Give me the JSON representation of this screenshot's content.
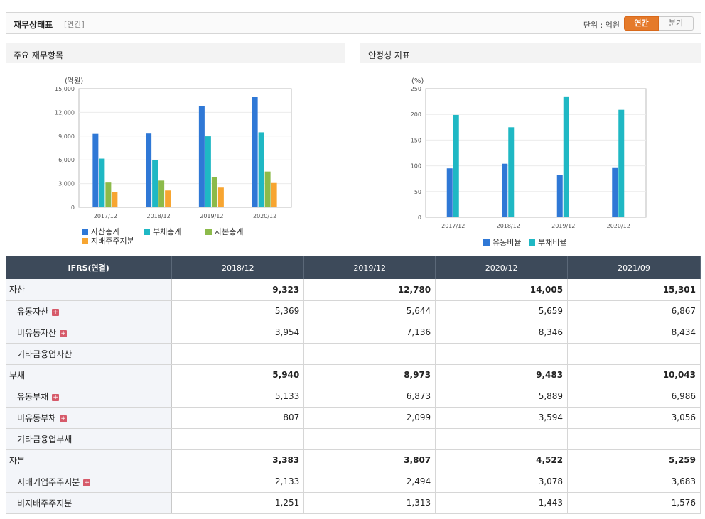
{
  "header": {
    "title": "재무상태표",
    "subtitle": "[연간]",
    "unit": "단위 : 억원",
    "toggle_annual": "연간",
    "toggle_quarter": "분기"
  },
  "left_panel": {
    "title": "주요 재무항목"
  },
  "right_panel": {
    "title": "안정성 지표"
  },
  "chart_data": [
    {
      "type": "bar",
      "title": "주요 재무항목",
      "ylabel": "(억원)",
      "categories": [
        "2017/12",
        "2018/12",
        "2019/12",
        "2020/12"
      ],
      "ylim": [
        0,
        15000
      ],
      "yticks": [
        "0",
        "3,000",
        "6,000",
        "9,000",
        "12,000",
        "15,000"
      ],
      "ytick_values": [
        0,
        3000,
        6000,
        9000,
        12000,
        15000
      ],
      "series": [
        {
          "name": "자산총계",
          "color": "#2f78d6",
          "values": [
            9280,
            9323,
            12780,
            14005
          ]
        },
        {
          "name": "부채총계",
          "color": "#1fb8c4",
          "values": [
            6150,
            5940,
            8973,
            9483
          ]
        },
        {
          "name": "자본총계",
          "color": "#8cba4a",
          "values": [
            3130,
            3383,
            3807,
            4522
          ]
        },
        {
          "name": "지배주주지분",
          "color": "#f7a531",
          "values": [
            1900,
            2133,
            2494,
            3078
          ]
        }
      ]
    },
    {
      "type": "bar",
      "title": "안정성 지표",
      "ylabel": "(%)",
      "categories": [
        "2017/12",
        "2018/12",
        "2019/12",
        "2020/12"
      ],
      "ylim": [
        0,
        250
      ],
      "yticks": [
        "0",
        "50",
        "100",
        "150",
        "200",
        "250"
      ],
      "ytick_values": [
        0,
        50,
        100,
        150,
        200,
        250
      ],
      "series": [
        {
          "name": "유동비율",
          "color": "#2f78d6",
          "values": [
            95,
            104,
            82,
            97
          ]
        },
        {
          "name": "부채비율",
          "color": "#1fb8c4",
          "values": [
            199,
            175,
            235,
            209
          ]
        }
      ]
    }
  ],
  "table": {
    "header": [
      "IFRS(연결)",
      "2018/12",
      "2019/12",
      "2020/12",
      "2021/09"
    ],
    "rows": [
      {
        "label": "자산",
        "main": true,
        "plus": false,
        "values": [
          "9,323",
          "12,780",
          "14,005",
          "15,301"
        ]
      },
      {
        "label": "유동자산",
        "main": false,
        "plus": true,
        "values": [
          "5,369",
          "5,644",
          "5,659",
          "6,867"
        ]
      },
      {
        "label": "비유동자산",
        "main": false,
        "plus": true,
        "values": [
          "3,954",
          "7,136",
          "8,346",
          "8,434"
        ]
      },
      {
        "label": "기타금융업자산",
        "main": false,
        "plus": false,
        "values": [
          "",
          "",
          "",
          ""
        ]
      },
      {
        "label": "부채",
        "main": true,
        "plus": false,
        "values": [
          "5,940",
          "8,973",
          "9,483",
          "10,043"
        ]
      },
      {
        "label": "유동부채",
        "main": false,
        "plus": true,
        "values": [
          "5,133",
          "6,873",
          "5,889",
          "6,986"
        ]
      },
      {
        "label": "비유동부채",
        "main": false,
        "plus": true,
        "values": [
          "807",
          "2,099",
          "3,594",
          "3,056"
        ]
      },
      {
        "label": "기타금융업부채",
        "main": false,
        "plus": false,
        "values": [
          "",
          "",
          "",
          ""
        ]
      },
      {
        "label": "자본",
        "main": true,
        "plus": false,
        "values": [
          "3,383",
          "3,807",
          "4,522",
          "5,259"
        ]
      },
      {
        "label": "지배기업주주지분",
        "main": false,
        "plus": true,
        "values": [
          "2,133",
          "2,494",
          "3,078",
          "3,683"
        ]
      },
      {
        "label": "비지배주주지분",
        "main": false,
        "plus": false,
        "values": [
          "1,251",
          "1,313",
          "1,443",
          "1,576"
        ]
      }
    ]
  }
}
